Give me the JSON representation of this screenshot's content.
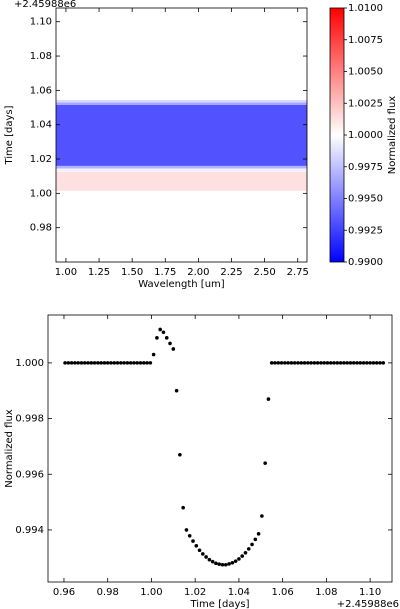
{
  "chart_data": [
    {
      "type": "heatmap",
      "x_label": "Wavelength [um]",
      "y_label": "Time [days]",
      "y_offset": "+2.45988e6",
      "xlim": [
        0.925,
        2.82
      ],
      "xticks": [
        {
          "value": 1.0,
          "label": "1.00"
        },
        {
          "value": 1.25,
          "label": "1.25"
        },
        {
          "value": 1.5,
          "label": "1.50"
        },
        {
          "value": 1.75,
          "label": "1.75"
        },
        {
          "value": 2.0,
          "label": "2.00"
        },
        {
          "value": 2.25,
          "label": "2.25"
        },
        {
          "value": 2.5,
          "label": "2.50"
        },
        {
          "value": 2.75,
          "label": "2.75"
        }
      ],
      "ylim": [
        0.96,
        1.108
      ],
      "yticks": [
        0.98,
        {
          "value": 1.0,
          "label": "1.00"
        },
        1.02,
        1.04,
        1.06,
        1.08,
        {
          "value": 1.1,
          "label": "1.10"
        }
      ],
      "ybins": [
        0.96,
        1.0015,
        1.0125,
        1.0145,
        1.016,
        1.0515,
        1.053,
        1.0545,
        1.108
      ],
      "values": [
        1.0,
        1.0012,
        0.9995,
        0.997,
        0.9932,
        0.9965,
        0.9985,
        1.0
      ],
      "cmap": "bwr",
      "clim": [
        0.99,
        1.01
      ],
      "colorbar_label": "Normalized flux",
      "colorbar_ticks": [
        {
          "value": 0.99,
          "label": "0.9900"
        },
        {
          "value": 0.9925,
          "label": "0.9925"
        },
        {
          "value": 0.995,
          "label": "0.9950"
        },
        {
          "value": 0.9975,
          "label": "0.9975"
        },
        {
          "value": 1.0,
          "label": "1.0000"
        },
        {
          "value": 1.0025,
          "label": "1.0025"
        },
        {
          "value": 1.005,
          "label": "1.0050"
        },
        {
          "value": 1.0075,
          "label": "1.0075"
        },
        {
          "value": 1.01,
          "label": "1.0100"
        }
      ]
    },
    {
      "type": "scatter",
      "x_label": "Time [days]",
      "y_label": "Normalized flux",
      "x_offset": "+2.45988e6",
      "color": "#000000",
      "xlim": [
        0.9527,
        1.11
      ],
      "xticks": [
        0.96,
        0.98,
        {
          "value": 1.0,
          "label": "1.00"
        },
        1.02,
        1.04,
        1.06,
        1.08,
        {
          "value": 1.1,
          "label": "1.10"
        }
      ],
      "ylim": [
        0.99213,
        1.00172
      ],
      "yticks": [
        0.994,
        0.996,
        0.998,
        {
          "value": 1.0,
          "label": "1.000"
        }
      ],
      "x": [
        0.9605,
        0.962,
        0.9635,
        0.965,
        0.9665,
        0.968,
        0.9695,
        0.971,
        0.9725,
        0.974,
        0.9755,
        0.977,
        0.9785,
        0.98,
        0.9815,
        0.983,
        0.9845,
        0.986,
        0.9875,
        0.989,
        0.9905,
        0.992,
        0.9935,
        0.995,
        0.9965,
        0.998,
        0.9995,
        1.001,
        1.0025,
        1.004,
        1.0055,
        1.007,
        1.0085,
        1.01,
        1.0115,
        1.013,
        1.0145,
        1.016,
        1.0175,
        1.019,
        1.0205,
        1.022,
        1.0235,
        1.025,
        1.0265,
        1.028,
        1.0295,
        1.031,
        1.0325,
        1.034,
        1.0355,
        1.037,
        1.0385,
        1.04,
        1.0415,
        1.043,
        1.0445,
        1.046,
        1.0475,
        1.049,
        1.0505,
        1.052,
        1.0535,
        1.055,
        1.0565,
        1.058,
        1.0595,
        1.061,
        1.0625,
        1.064,
        1.0655,
        1.067,
        1.0685,
        1.07,
        1.0715,
        1.073,
        1.0745,
        1.076,
        1.0775,
        1.079,
        1.0805,
        1.082,
        1.0835,
        1.085,
        1.0865,
        1.088,
        1.0895,
        1.091,
        1.0925,
        1.094,
        1.0955,
        1.097,
        1.0985,
        1.1,
        1.1015,
        1.103,
        1.1045,
        1.106
      ],
      "y": [
        1.0,
        1.0,
        1.0,
        1.0,
        1.0,
        1.0,
        1.0,
        1.0,
        1.0,
        1.0,
        1.0,
        1.0,
        1.0,
        1.0,
        1.0,
        1.0,
        1.0,
        1.0,
        1.0,
        1.0,
        1.0,
        1.0,
        1.0,
        1.0,
        1.0,
        1.0,
        1.0,
        1.0003,
        1.0009,
        1.0012,
        1.0011,
        1.0009,
        1.0007,
        1.0005,
        0.999,
        0.9967,
        0.9948,
        0.994,
        0.99379,
        0.9936,
        0.99343,
        0.99327,
        0.99314,
        0.99303,
        0.99293,
        0.99286,
        0.9928,
        0.99277,
        0.99275,
        0.99275,
        0.99278,
        0.99282,
        0.99288,
        0.99296,
        0.99306,
        0.99318,
        0.99332,
        0.99348,
        0.99366,
        0.99386,
        0.9945,
        0.9964,
        0.9987,
        1.0,
        1.0,
        1.0,
        1.0,
        1.0,
        1.0,
        1.0,
        1.0,
        1.0,
        1.0,
        1.0,
        1.0,
        1.0,
        1.0,
        1.0,
        1.0,
        1.0,
        1.0,
        1.0,
        1.0,
        1.0,
        1.0,
        1.0,
        1.0,
        1.0,
        1.0,
        1.0,
        1.0,
        1.0,
        1.0,
        1.0,
        1.0,
        1.0,
        1.0,
        1.0
      ]
    }
  ]
}
